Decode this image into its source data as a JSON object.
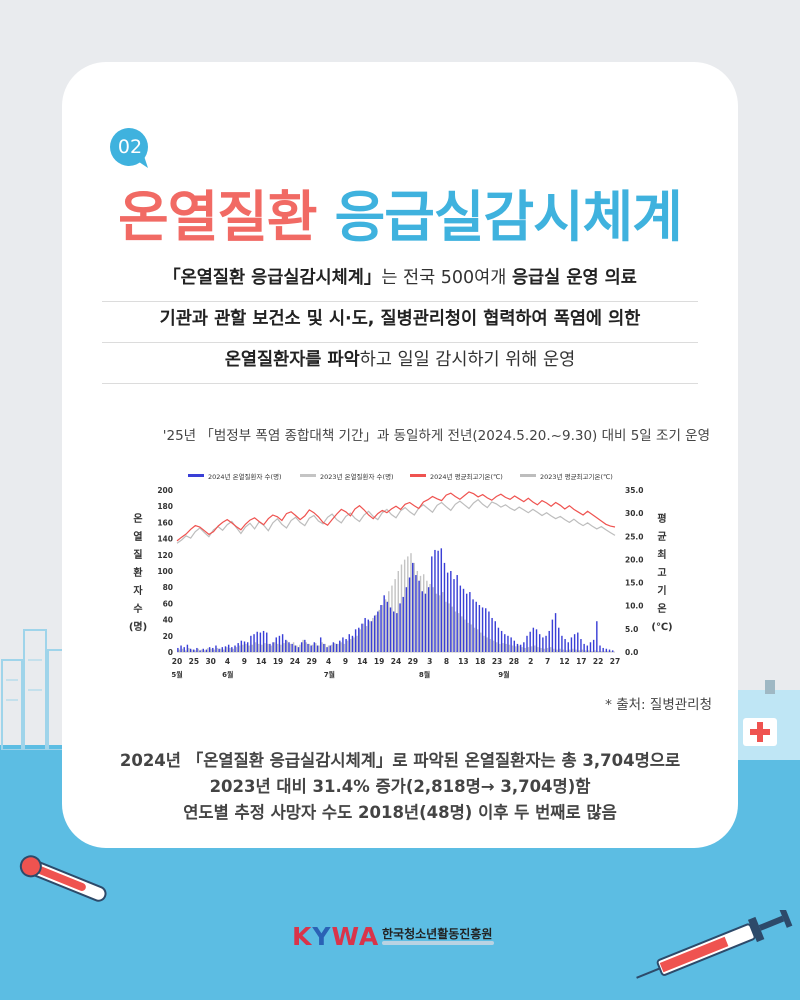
{
  "badge_number": "02",
  "title": {
    "part1": "온열질환",
    "part2": "응급실감시체계"
  },
  "description": {
    "line1_a": "「온열질환 응급실감시체계」",
    "line1_b": "는 전국 500여개 ",
    "line1_c": "응급실 운영 의료",
    "line2": "기관과 관할 보건소 및 시·도, 질병관리청이 협력하여 폭염에 의한",
    "line3_a": "온열질환자를 파악",
    "line3_b": "하고 일일 감시하기 위해 운영"
  },
  "note": "'25년 「범정부 폭염 종합대책 기간」과 동일하게 전년(2024.5.20.~9.30) 대비 5일 조기 운영",
  "source": "* 출처: 질병관리청",
  "summary": {
    "line1": "2024년 「온열질환 응급실감시체계」로 파악된 온열질환자는 총 3,704명으로",
    "line2": "2023년 대비 31.4% 증가(2,818명→ 3,704명)함",
    "line3": "연도별 추정 사망자 수도 2018년(48명) 이후 두 번째로 많음"
  },
  "logo": {
    "mark_k": "K",
    "mark_y": "Y",
    "mark_wa": "WA",
    "org": "한국청소년활동진흥원"
  },
  "colors": {
    "coral": "#f16a64",
    "sky": "#3fb2de",
    "bar2024": "#3a3fd6",
    "bar2023": "#c4c4c4",
    "temp2024": "#ef5350",
    "temp2023": "#bdbdbd"
  },
  "chart_data": {
    "type": "bar",
    "legend": [
      "2024년 온열질환자 수(명)",
      "2023년 온열질환자 수(명)",
      "2024년 평균최고기온(℃)",
      "2023년 평균최고기온(℃)"
    ],
    "legend_position": "top",
    "y_left_label": "온열질환자수(명)",
    "y_right_label": "평균최고기온(℃)",
    "y_left_ticks": [
      "200",
      "180",
      "160",
      "140",
      "120",
      "100",
      "80",
      "60",
      "40",
      "20",
      "0"
    ],
    "y_right_ticks": [
      "35.0",
      "30.0",
      "25.0",
      "20.0",
      "15.0",
      "10.0",
      "5.0",
      "0.0"
    ],
    "ylim_left": [
      0,
      200
    ],
    "ylim_right": [
      0,
      35
    ],
    "x_day_labels": [
      "20",
      "25",
      "30",
      "4",
      "9",
      "14",
      "19",
      "24",
      "29",
      "4",
      "9",
      "14",
      "19",
      "24",
      "29",
      "3",
      "8",
      "13",
      "18",
      "23",
      "28",
      "2",
      "7",
      "12",
      "17",
      "22",
      "27"
    ],
    "x_month_labels": [
      "5월",
      "6월",
      "7월",
      "8월",
      "9월"
    ],
    "month_label_positions": [
      0,
      16,
      48,
      78,
      103
    ],
    "series": [
      {
        "name": "2024년 온열질환자 수(명)",
        "type": "bar",
        "values": [
          5,
          8,
          6,
          9,
          4,
          3,
          5,
          2,
          4,
          3,
          6,
          5,
          8,
          4,
          6,
          7,
          9,
          6,
          8,
          11,
          14,
          13,
          12,
          20,
          22,
          25,
          24,
          26,
          24,
          10,
          12,
          18,
          20,
          22,
          15,
          12,
          10,
          8,
          6,
          12,
          15,
          10,
          8,
          12,
          8,
          18,
          10,
          6,
          8,
          12,
          10,
          14,
          18,
          16,
          22,
          20,
          28,
          30,
          35,
          42,
          40,
          38,
          45,
          50,
          58,
          70,
          62,
          55,
          50,
          48,
          60,
          68,
          80,
          92,
          110,
          95,
          88,
          75,
          72,
          80,
          118,
          126,
          125,
          128,
          110,
          98,
          100,
          90,
          95,
          82,
          78,
          72,
          74,
          65,
          62,
          58,
          55,
          54,
          50,
          42,
          38,
          30,
          26,
          22,
          20,
          18,
          14,
          10,
          9,
          12,
          20,
          25,
          30,
          28,
          22,
          18,
          20,
          26,
          40,
          48,
          30,
          20,
          16,
          12,
          18,
          22,
          24,
          16,
          10,
          8,
          12,
          15,
          38,
          8,
          5,
          4,
          3,
          2
        ]
      },
      {
        "name": "2023년 온열질환자 수(명)",
        "type": "bar",
        "values": [
          3,
          4,
          2,
          5,
          3,
          2,
          4,
          3,
          2,
          5,
          4,
          3,
          5,
          4,
          3,
          6,
          5,
          4,
          6,
          8,
          9,
          10,
          8,
          9,
          12,
          10,
          9,
          11,
          10,
          8,
          12,
          10,
          9,
          11,
          14,
          10,
          12,
          8,
          9,
          15,
          12,
          10,
          9,
          11,
          8,
          12,
          10,
          8,
          9,
          11,
          10,
          12,
          10,
          14,
          16,
          18,
          20,
          28,
          35,
          32,
          38,
          42,
          46,
          52,
          58,
          65,
          75,
          82,
          90,
          100,
          108,
          114,
          118,
          122,
          110,
          100,
          94,
          96,
          88,
          84,
          80,
          72,
          70,
          74,
          62,
          60,
          56,
          50,
          48,
          44,
          40,
          36,
          34,
          30,
          28,
          24,
          20,
          18,
          16,
          14,
          12,
          10,
          11,
          10,
          9,
          8,
          7,
          8,
          6,
          5,
          6,
          7,
          8,
          6,
          5,
          4,
          5,
          6,
          4,
          3,
          4,
          3,
          2,
          3,
          4,
          3,
          2,
          3,
          2,
          2,
          1,
          2,
          1,
          1,
          1,
          1,
          1
        ]
      },
      {
        "name": "2024년 평균최고기온(℃)",
        "type": "line",
        "values": [
          24.0,
          24.8,
          25.5,
          26.5,
          27.3,
          27.0,
          26.2,
          25.4,
          26.0,
          27.2,
          28.0,
          28.6,
          27.9,
          27.1,
          26.4,
          27.6,
          28.5,
          29.0,
          28.2,
          27.5,
          28.8,
          29.6,
          29.2,
          28.4,
          29.9,
          30.3,
          29.5,
          28.6,
          29.4,
          30.7,
          30.1,
          29.2,
          28.0,
          27.4,
          28.6,
          29.8,
          30.8,
          30.3,
          29.4,
          30.9,
          31.6,
          30.7,
          29.6,
          28.8,
          29.9,
          30.6,
          30.1,
          30.9,
          31.5,
          30.8,
          31.9,
          32.3,
          31.6,
          31.0,
          32.4,
          32.9,
          33.6,
          33.1,
          32.7,
          33.9,
          34.3,
          33.6,
          33.0,
          33.8,
          34.6,
          34.2,
          33.5,
          34.0,
          33.3,
          32.8,
          33.6,
          34.1,
          33.4,
          33.0,
          33.7,
          33.1,
          32.5,
          33.2,
          32.4,
          31.8,
          32.7,
          32.2,
          31.5,
          32.3,
          31.7,
          30.9,
          31.6,
          30.8,
          30.2,
          29.6,
          30.4,
          29.7,
          29.0,
          28.3,
          27.6,
          27.2,
          27.0
        ]
      },
      {
        "name": "2023년 평균최고기온(℃)",
        "type": "line",
        "values": [
          23.5,
          24.2,
          25.1,
          24.6,
          26.0,
          26.8,
          25.8,
          24.9,
          26.4,
          27.1,
          26.3,
          27.5,
          28.2,
          26.9,
          25.6,
          27.0,
          27.8,
          26.6,
          28.1,
          27.4,
          26.2,
          27.9,
          28.8,
          27.6,
          26.8,
          28.4,
          29.1,
          28.0,
          27.3,
          28.9,
          29.5,
          28.3,
          27.7,
          29.1,
          29.8,
          28.6,
          27.9,
          29.3,
          30.0,
          28.9,
          28.2,
          29.6,
          30.4,
          29.3,
          28.6,
          30.1,
          30.8,
          29.7,
          29.0,
          30.5,
          31.2,
          30.3,
          29.6,
          31.1,
          31.8,
          31.0,
          30.2,
          31.7,
          32.3,
          31.4,
          30.6,
          31.9,
          32.6,
          31.8,
          31.0,
          32.2,
          32.9,
          31.9,
          31.2,
          32.4,
          32.0,
          31.3,
          31.8,
          31.1,
          30.6,
          31.3,
          30.7,
          30.1,
          30.8,
          30.2,
          29.5,
          30.1,
          29.4,
          28.8,
          29.3,
          28.6,
          28.0,
          28.7,
          27.9,
          27.3,
          27.9,
          27.2,
          26.6,
          27.1,
          26.4,
          25.8,
          25.2
        ]
      }
    ]
  }
}
